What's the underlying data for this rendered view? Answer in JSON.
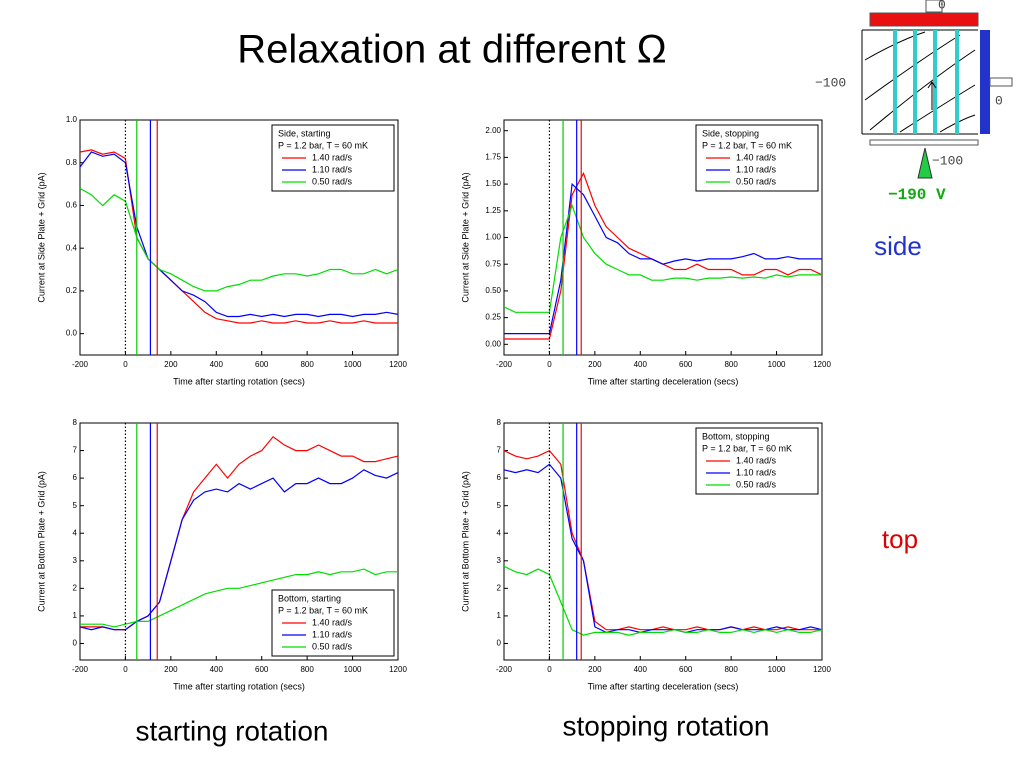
{
  "title": "Relaxation at different Ω",
  "captions": {
    "left": "starting rotation",
    "right": "stopping rotation"
  },
  "side_labels": {
    "side": "side",
    "top": "top"
  },
  "diagram": {
    "top_value": "0",
    "left_value": "−100",
    "right_value": "0",
    "bottom_value": "−100",
    "voltage": "−190 V"
  },
  "chart_data": [
    {
      "type": "line",
      "legend_title": [
        "Side, starting",
        "P = 1.2 bar, T = 60 mK"
      ],
      "legend": "upper right",
      "xlabel": "Time after starting rotation (secs)",
      "ylabel": "Current at Side Plate + Grid (pA)",
      "xlim": [
        -200,
        1200
      ],
      "xticks": [
        -200,
        0,
        200,
        400,
        600,
        800,
        1000,
        1200
      ],
      "ylim": [
        -0.1,
        1.0
      ],
      "yticks": [
        {
          "value": 0,
          "label": "0.0"
        },
        0.2,
        0.4,
        0.6,
        0.8,
        {
          "value": 1,
          "label": "1.0"
        }
      ],
      "markers": [
        {
          "x": 0,
          "color": "#000000",
          "style": "dotted"
        },
        {
          "x": 50,
          "color": "#00cc00",
          "style": "solid"
        },
        {
          "x": 110,
          "color": "#0000ff",
          "style": "solid"
        },
        {
          "x": 140,
          "color": "#ff0000",
          "style": "solid"
        }
      ],
      "x": [
        -200,
        -150,
        -100,
        -50,
        0,
        50,
        100,
        150,
        200,
        250,
        300,
        350,
        400,
        450,
        500,
        550,
        600,
        650,
        700,
        750,
        800,
        850,
        900,
        950,
        1000,
        1050,
        1100,
        1150,
        1200
      ],
      "series": [
        {
          "name": "1.40 rad/s",
          "color": "#ff0000",
          "values": [
            0.85,
            0.86,
            0.84,
            0.85,
            0.82,
            0.45,
            0.35,
            0.3,
            0.25,
            0.2,
            0.15,
            0.1,
            0.07,
            0.06,
            0.05,
            0.05,
            0.06,
            0.05,
            0.05,
            0.06,
            0.05,
            0.05,
            0.06,
            0.05,
            0.05,
            0.06,
            0.05,
            0.05,
            0.05
          ]
        },
        {
          "name": "1.10 rad/s",
          "color": "#0000ff",
          "values": [
            0.78,
            0.85,
            0.83,
            0.84,
            0.8,
            0.5,
            0.35,
            0.3,
            0.25,
            0.2,
            0.18,
            0.15,
            0.1,
            0.08,
            0.08,
            0.09,
            0.08,
            0.09,
            0.08,
            0.09,
            0.09,
            0.08,
            0.09,
            0.09,
            0.08,
            0.09,
            0.09,
            0.1,
            0.09
          ]
        },
        {
          "name": "0.50 rad/s",
          "color": "#00dd00",
          "values": [
            0.68,
            0.65,
            0.6,
            0.65,
            0.62,
            0.45,
            0.35,
            0.3,
            0.28,
            0.25,
            0.22,
            0.2,
            0.2,
            0.22,
            0.23,
            0.25,
            0.25,
            0.27,
            0.28,
            0.28,
            0.27,
            0.28,
            0.3,
            0.3,
            0.28,
            0.28,
            0.3,
            0.28,
            0.3
          ]
        }
      ]
    },
    {
      "type": "line",
      "legend_title": [
        "Side, stopping",
        "P = 1.2 bar, T = 60 mK"
      ],
      "legend": "upper right",
      "xlabel": "Time after starting deceleration (secs)",
      "ylabel": "Current at Side Plate + Grid (pA)",
      "xlim": [
        -200,
        1200
      ],
      "xticks": [
        -200,
        0,
        200,
        400,
        600,
        800,
        1000,
        1200
      ],
      "ylim": [
        -0.1,
        2.1
      ],
      "yticks": [
        {
          "value": 0,
          "label": "0.00"
        },
        0.25,
        {
          "value": 0.5,
          "label": "0.50"
        },
        0.75,
        {
          "value": 1,
          "label": "1.00"
        },
        1.25,
        {
          "value": 1.5,
          "label": "1.50"
        },
        1.75,
        {
          "value": 2,
          "label": "2.00"
        }
      ],
      "markers": [
        {
          "x": 0,
          "color": "#000000",
          "style": "dotted"
        },
        {
          "x": 60,
          "color": "#00cc00",
          "style": "solid"
        },
        {
          "x": 120,
          "color": "#0000ff",
          "style": "solid"
        },
        {
          "x": 140,
          "color": "#ff0000",
          "style": "solid"
        }
      ],
      "x": [
        -200,
        -150,
        -100,
        -50,
        0,
        50,
        100,
        150,
        200,
        250,
        300,
        350,
        400,
        450,
        500,
        550,
        600,
        650,
        700,
        750,
        800,
        850,
        900,
        950,
        1000,
        1050,
        1100,
        1150,
        1200
      ],
      "series": [
        {
          "name": "1.40 rad/s",
          "color": "#ff0000",
          "values": [
            0.05,
            0.05,
            0.05,
            0.05,
            0.05,
            0.5,
            1.4,
            1.6,
            1.3,
            1.1,
            1.0,
            0.9,
            0.85,
            0.8,
            0.75,
            0.7,
            0.7,
            0.75,
            0.7,
            0.7,
            0.7,
            0.65,
            0.65,
            0.7,
            0.7,
            0.65,
            0.7,
            0.7,
            0.65
          ]
        },
        {
          "name": "1.10 rad/s",
          "color": "#0000ff",
          "values": [
            0.1,
            0.1,
            0.1,
            0.1,
            0.1,
            0.6,
            1.5,
            1.4,
            1.2,
            1.0,
            0.95,
            0.85,
            0.8,
            0.8,
            0.75,
            0.78,
            0.8,
            0.78,
            0.8,
            0.8,
            0.8,
            0.82,
            0.85,
            0.8,
            0.8,
            0.82,
            0.8,
            0.8,
            0.8
          ]
        },
        {
          "name": "0.50 rad/s",
          "color": "#00dd00",
          "values": [
            0.35,
            0.3,
            0.3,
            0.3,
            0.3,
            1.0,
            1.3,
            1.0,
            0.85,
            0.75,
            0.7,
            0.65,
            0.65,
            0.6,
            0.6,
            0.62,
            0.62,
            0.6,
            0.62,
            0.62,
            0.63,
            0.62,
            0.63,
            0.62,
            0.65,
            0.63,
            0.65,
            0.65,
            0.65
          ]
        }
      ]
    },
    {
      "type": "line",
      "legend_title": [
        "Bottom, starting",
        "P = 1.2 bar, T = 60 mK"
      ],
      "legend": "lower right",
      "xlabel": "Time after starting rotation (secs)",
      "ylabel": "Current at Bottom Plate + Grid (pA)",
      "xlim": [
        -200,
        1200
      ],
      "xticks": [
        -200,
        0,
        200,
        400,
        600,
        800,
        1000,
        1200
      ],
      "ylim": [
        -0.6,
        8
      ],
      "yticks": [
        0,
        1,
        2,
        3,
        4,
        5,
        6,
        7,
        8
      ],
      "markers": [
        {
          "x": 0,
          "color": "#000000",
          "style": "dotted"
        },
        {
          "x": 50,
          "color": "#00cc00",
          "style": "solid"
        },
        {
          "x": 110,
          "color": "#0000ff",
          "style": "solid"
        },
        {
          "x": 140,
          "color": "#ff0000",
          "style": "solid"
        }
      ],
      "x": [
        -200,
        -150,
        -100,
        -50,
        0,
        50,
        100,
        150,
        200,
        250,
        300,
        350,
        400,
        450,
        500,
        550,
        600,
        650,
        700,
        750,
        800,
        850,
        900,
        950,
        1000,
        1050,
        1100,
        1150,
        1200
      ],
      "series": [
        {
          "name": "1.40 rad/s",
          "color": "#ff0000",
          "values": [
            0.6,
            0.6,
            0.6,
            0.5,
            0.5,
            0.8,
            1.0,
            1.5,
            3.0,
            4.5,
            5.5,
            6.0,
            6.5,
            6.0,
            6.5,
            6.8,
            7.0,
            7.5,
            7.2,
            7.0,
            7.0,
            7.2,
            7.0,
            6.8,
            6.8,
            6.6,
            6.6,
            6.7,
            6.8
          ]
        },
        {
          "name": "1.10 rad/s",
          "color": "#0000ff",
          "values": [
            0.6,
            0.5,
            0.6,
            0.5,
            0.5,
            0.8,
            1.0,
            1.5,
            3.0,
            4.5,
            5.2,
            5.5,
            5.6,
            5.5,
            5.8,
            5.6,
            5.8,
            6.0,
            5.5,
            5.8,
            5.8,
            6.0,
            5.8,
            5.8,
            6.0,
            6.3,
            6.1,
            6.0,
            6.2
          ]
        },
        {
          "name": "0.50 rad/s",
          "color": "#00dd00",
          "values": [
            0.7,
            0.7,
            0.7,
            0.6,
            0.7,
            0.8,
            0.8,
            1.0,
            1.2,
            1.4,
            1.6,
            1.8,
            1.9,
            2.0,
            2.0,
            2.1,
            2.2,
            2.3,
            2.4,
            2.5,
            2.5,
            2.6,
            2.5,
            2.6,
            2.6,
            2.7,
            2.5,
            2.6,
            2.6
          ]
        }
      ]
    },
    {
      "type": "line",
      "legend_title": [
        "Bottom, stopping",
        "P = 1.2 bar, T = 60 mK"
      ],
      "legend": "upper right",
      "xlabel": "Time after starting deceleration (secs)",
      "ylabel": "Current at Bottom Plate + Grid (pA)",
      "xlim": [
        -200,
        1200
      ],
      "xticks": [
        -200,
        0,
        200,
        400,
        600,
        800,
        1000,
        1200
      ],
      "ylim": [
        -0.6,
        8
      ],
      "yticks": [
        0,
        1,
        2,
        3,
        4,
        5,
        6,
        7,
        8
      ],
      "markers": [
        {
          "x": 0,
          "color": "#000000",
          "style": "dotted"
        },
        {
          "x": 60,
          "color": "#00cc00",
          "style": "solid"
        },
        {
          "x": 120,
          "color": "#0000ff",
          "style": "solid"
        },
        {
          "x": 140,
          "color": "#ff0000",
          "style": "solid"
        }
      ],
      "x": [
        -200,
        -150,
        -100,
        -50,
        0,
        50,
        100,
        150,
        200,
        250,
        300,
        350,
        400,
        450,
        500,
        550,
        600,
        650,
        700,
        750,
        800,
        850,
        900,
        950,
        1000,
        1050,
        1100,
        1150,
        1200
      ],
      "series": [
        {
          "name": "1.40 rad/s",
          "color": "#ff0000",
          "values": [
            7.0,
            6.8,
            6.7,
            6.8,
            7.0,
            6.5,
            4.0,
            3.0,
            0.8,
            0.5,
            0.5,
            0.6,
            0.5,
            0.5,
            0.6,
            0.5,
            0.5,
            0.6,
            0.5,
            0.5,
            0.6,
            0.5,
            0.6,
            0.5,
            0.5,
            0.6,
            0.5,
            0.5,
            0.5
          ]
        },
        {
          "name": "1.10 rad/s",
          "color": "#0000ff",
          "values": [
            6.3,
            6.2,
            6.3,
            6.2,
            6.5,
            6.0,
            3.8,
            3.0,
            0.6,
            0.4,
            0.5,
            0.5,
            0.4,
            0.5,
            0.5,
            0.5,
            0.4,
            0.5,
            0.5,
            0.5,
            0.6,
            0.5,
            0.5,
            0.5,
            0.6,
            0.5,
            0.5,
            0.6,
            0.5
          ]
        },
        {
          "name": "0.50 rad/s",
          "color": "#00dd00",
          "values": [
            2.8,
            2.6,
            2.5,
            2.7,
            2.5,
            1.5,
            0.5,
            0.3,
            0.4,
            0.4,
            0.4,
            0.3,
            0.4,
            0.4,
            0.4,
            0.5,
            0.4,
            0.4,
            0.5,
            0.4,
            0.4,
            0.5,
            0.4,
            0.5,
            0.4,
            0.5,
            0.4,
            0.4,
            0.5
          ]
        }
      ]
    }
  ]
}
